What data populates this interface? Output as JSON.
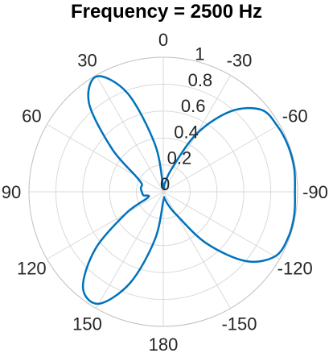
{
  "chart_data": {
    "type": "line",
    "subtype": "polar",
    "title": "Frequency = 2500 Hz",
    "theta_direction": "clockwise",
    "theta_zero_location": "top",
    "theta_ticks": [
      0,
      -30,
      -60,
      -90,
      -120,
      -150,
      180,
      150,
      120,
      90,
      60,
      30
    ],
    "theta_tick_labels": [
      "0",
      "-30",
      "-60",
      "-90",
      "-120",
      "-150",
      "180",
      "150",
      "120",
      "90",
      "60",
      "30"
    ],
    "r_ticks": [
      0,
      0.2,
      0.4,
      0.6,
      0.8,
      1
    ],
    "r_tick_labels": [
      "0",
      "0.2",
      "0.4",
      "0.6",
      "0.8",
      "1"
    ],
    "r_label_angle": 15,
    "rlim": [
      0,
      1
    ],
    "grid": true,
    "series": [
      {
        "color": "#0072bd",
        "theta": [
          0,
          10,
          20,
          30,
          40,
          50,
          60,
          70,
          80,
          90,
          100,
          110,
          120,
          130,
          140,
          150,
          160,
          170,
          180,
          190,
          200,
          210,
          220,
          230,
          240,
          250,
          260,
          270,
          280,
          290,
          300,
          310,
          320,
          330,
          340,
          350,
          360
        ],
        "r": [
          0.04,
          0.36,
          0.78,
          0.99,
          0.86,
          0.5,
          0.24,
          0.17,
          0.17,
          0.16,
          0.15,
          0.12,
          0.32,
          0.66,
          0.93,
          0.96,
          0.72,
          0.36,
          0.07,
          0.05,
          0.1,
          0.2,
          0.5,
          0.8,
          0.96,
          0.99,
          0.99,
          0.98,
          0.99,
          0.99,
          0.98,
          0.95,
          0.78,
          0.5,
          0.18,
          0.06,
          0.04
        ]
      }
    ]
  }
}
